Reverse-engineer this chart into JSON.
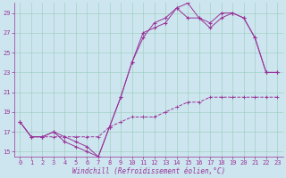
{
  "xlabel": "Windchill (Refroidissement éolien,°C)",
  "bg_color": "#cce5ee",
  "line_color": "#993399",
  "grid_color": "#99ccbb",
  "xlim": [
    -0.5,
    23.5
  ],
  "ylim": [
    14.5,
    30.0
  ],
  "xticks": [
    0,
    1,
    2,
    3,
    4,
    5,
    6,
    7,
    8,
    9,
    10,
    11,
    12,
    13,
    14,
    15,
    16,
    17,
    18,
    19,
    20,
    21,
    22,
    23
  ],
  "yticks": [
    15,
    17,
    19,
    21,
    23,
    25,
    27,
    29
  ],
  "line1_x": [
    0,
    1,
    2,
    3,
    4,
    5,
    6,
    7,
    8,
    9,
    10,
    11,
    12,
    13,
    14,
    15,
    16,
    17,
    18,
    19,
    20,
    21,
    22,
    23
  ],
  "line1_y": [
    18.0,
    16.5,
    16.5,
    17.0,
    16.5,
    16.0,
    15.5,
    14.5,
    17.5,
    20.5,
    24.0,
    26.5,
    28.0,
    28.5,
    29.5,
    30.0,
    28.5,
    28.0,
    29.0,
    29.0,
    28.5,
    26.5,
    23.0,
    23.0
  ],
  "line2_x": [
    0,
    1,
    2,
    3,
    4,
    5,
    6,
    7,
    8,
    9,
    10,
    11,
    12,
    13,
    14,
    15,
    16,
    17,
    18,
    19,
    20,
    21,
    22,
    23
  ],
  "line2_y": [
    18.0,
    16.5,
    16.5,
    17.0,
    16.0,
    15.5,
    15.0,
    14.5,
    17.5,
    20.5,
    24.0,
    27.0,
    27.5,
    28.0,
    29.5,
    28.5,
    28.5,
    27.5,
    28.5,
    29.0,
    28.5,
    26.5,
    23.0,
    23.0
  ],
  "line3_x": [
    0,
    1,
    2,
    3,
    4,
    5,
    6,
    7,
    8,
    9,
    10,
    11,
    12,
    13,
    14,
    15,
    16,
    17,
    18,
    19,
    20,
    21,
    22,
    23
  ],
  "line3_y": [
    18.0,
    16.5,
    16.5,
    16.5,
    16.5,
    16.5,
    16.5,
    16.5,
    17.5,
    18.0,
    18.5,
    18.5,
    18.5,
    19.0,
    19.5,
    20.0,
    20.0,
    20.5,
    20.5,
    20.5,
    20.5,
    20.5,
    20.5,
    20.5
  ],
  "tick_fontsize": 5.0,
  "xlabel_fontsize": 5.5,
  "linewidth": 0.7,
  "marker_size": 3.0
}
